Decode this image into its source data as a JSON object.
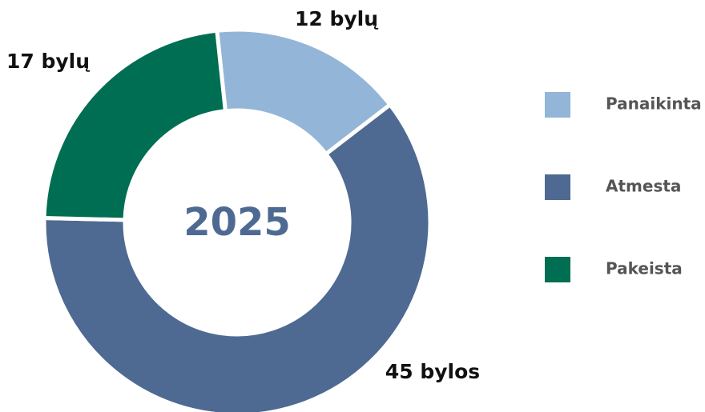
{
  "chart_data": {
    "type": "donut",
    "center_label": "2025",
    "categories": [
      "Panaikinta",
      "Atmesta",
      "Pakeista"
    ],
    "values": [
      12,
      45,
      17
    ],
    "value_labels": [
      "12 bylų",
      "45 bylos",
      "17 bylų"
    ],
    "colors": [
      "#93b5d8",
      "#4e6a92",
      "#006e52"
    ],
    "legend": "right"
  }
}
